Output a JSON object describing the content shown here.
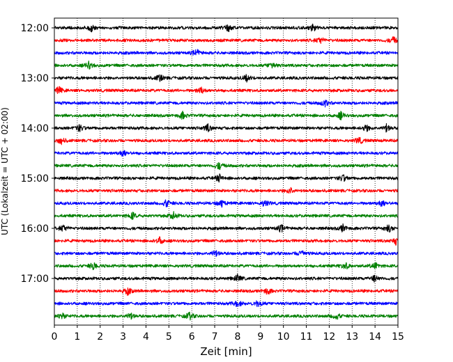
{
  "chart_data": {
    "type": "line",
    "title": "",
    "xlabel": "Zeit  [min]",
    "ylabel": "UTC (Lokalzeit = UTC + 02:00)",
    "xlim": [
      0,
      15
    ],
    "x_ticks": [
      0,
      1,
      2,
      3,
      4,
      5,
      6,
      7,
      8,
      9,
      10,
      11,
      12,
      13,
      14,
      15
    ],
    "grid": "vertical dotted",
    "y_tick_labels": [
      "12:00",
      "13:00",
      "14:00",
      "15:00",
      "16:00",
      "17:00"
    ],
    "traces_per_hour": 4,
    "trace_interval_min": 15,
    "colors_cycle": [
      "#000000",
      "#ff0000",
      "#0000ff",
      "#008000"
    ],
    "rows": [
      {
        "start": "12:00",
        "color": "#000000",
        "events_min": [
          1.6,
          7.6,
          11.3
        ]
      },
      {
        "start": "12:15",
        "color": "#ff0000",
        "events_min": [
          11.6,
          14.8
        ]
      },
      {
        "start": "12:30",
        "color": "#0000ff",
        "events_min": [
          6.2
        ]
      },
      {
        "start": "12:45",
        "color": "#008000",
        "events_min": [
          1.5,
          9.5
        ]
      },
      {
        "start": "13:00",
        "color": "#000000",
        "events_min": [
          4.6,
          8.4
        ]
      },
      {
        "start": "13:15",
        "color": "#ff0000",
        "events_min": [
          0.2,
          6.4
        ]
      },
      {
        "start": "13:30",
        "color": "#0000ff",
        "events_min": [
          11.8
        ]
      },
      {
        "start": "13:45",
        "color": "#008000",
        "events_min": [
          5.6,
          12.5
        ]
      },
      {
        "start": "14:00",
        "color": "#000000",
        "events_min": [
          1.1,
          6.7,
          13.6,
          14.5
        ]
      },
      {
        "start": "14:15",
        "color": "#ff0000",
        "events_min": [
          0.3,
          13.3
        ]
      },
      {
        "start": "14:30",
        "color": "#0000ff",
        "events_min": [
          3.0
        ]
      },
      {
        "start": "14:45",
        "color": "#008000",
        "events_min": [
          7.2
        ]
      },
      {
        "start": "15:00",
        "color": "#000000",
        "events_min": [
          7.2,
          12.6
        ]
      },
      {
        "start": "15:15",
        "color": "#ff0000",
        "events_min": [
          10.3
        ]
      },
      {
        "start": "15:30",
        "color": "#0000ff",
        "events_min": [
          4.9,
          7.3,
          9.2,
          14.3
        ]
      },
      {
        "start": "15:45",
        "color": "#008000",
        "events_min": [
          3.4,
          5.2
        ]
      },
      {
        "start": "16:00",
        "color": "#000000",
        "events_min": [
          0.4,
          9.9,
          12.6,
          14.6
        ]
      },
      {
        "start": "16:15",
        "color": "#ff0000",
        "events_min": [
          4.6,
          14.9
        ]
      },
      {
        "start": "16:30",
        "color": "#0000ff",
        "events_min": [
          7.0,
          10.8
        ]
      },
      {
        "start": "16:45",
        "color": "#008000",
        "events_min": [
          1.7,
          12.7,
          14.0
        ]
      },
      {
        "start": "17:00",
        "color": "#000000",
        "events_min": [
          8.0,
          14.0
        ]
      },
      {
        "start": "17:15",
        "color": "#ff0000",
        "events_min": [
          3.2,
          9.3
        ]
      },
      {
        "start": "17:30",
        "color": "#0000ff",
        "events_min": [
          8.0,
          8.9
        ]
      },
      {
        "start": "17:45",
        "color": "#008000",
        "events_min": [
          0.3,
          3.3,
          5.9,
          12.3
        ]
      }
    ]
  }
}
